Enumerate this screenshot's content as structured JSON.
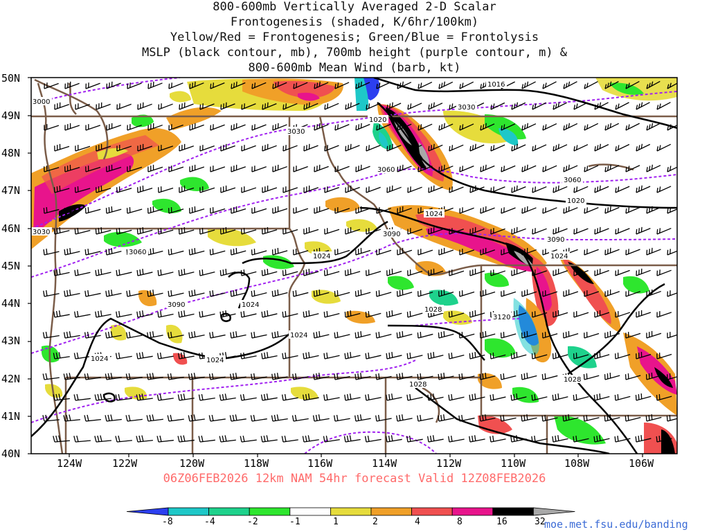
{
  "title_lines": [
    "800-600mb Vertically Averaged 2-D Scalar",
    "Frontogenesis (shaded, K/6hr/100km)",
    "Yellow/Red = Frontogenesis;  Green/Blue = Frontolysis",
    "MSLP (black contour, mb), 700mb height (purple contour, m) &",
    "800-600mb Mean Wind (barb, kt)"
  ],
  "lat_labels": [
    "50N",
    "49N",
    "48N",
    "47N",
    "46N",
    "45N",
    "44N",
    "43N",
    "42N",
    "41N",
    "40N"
  ],
  "lon_labels": [
    "124W",
    "122W",
    "120W",
    "118W",
    "116W",
    "114W",
    "112W",
    "110W",
    "108W",
    "106W"
  ],
  "valid_text": "06Z06FEB2026 12km NAM 54hr forecast Valid 12Z08FEB2026",
  "colorbar": {
    "labels": [
      "-8",
      "-4",
      "-2",
      "-1",
      "1",
      "2",
      "4",
      "8",
      "16",
      "32"
    ],
    "colors": [
      "#2c3ff0",
      "#1ec8c8",
      "#1ed28c",
      "#2ee62e",
      "#ffffff",
      "#e6dc3c",
      "#f0a028",
      "#f05050",
      "#e8148c",
      "#000000",
      "#a8a8a8"
    ]
  },
  "credit": "moe.met.fsu.edu/banding",
  "contour_labels": {
    "mslp": [
      "1016",
      "1020",
      "1020",
      "1024",
      "1024",
      "1024",
      "1024",
      "1024",
      "1024",
      "1028",
      "1028",
      "1028"
    ],
    "height": [
      "3000",
      "3030",
      "3030",
      "3030",
      "3060",
      "3060",
      "3060",
      "3090",
      "3090",
      "3090",
      "3120"
    ]
  }
}
